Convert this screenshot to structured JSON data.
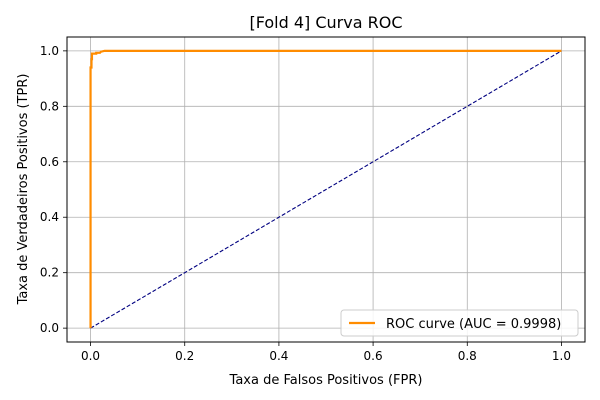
{
  "chart_data": {
    "type": "line",
    "title": "[Fold 4] Curva ROC",
    "xlabel": "Taxa de Falsos Positivos (FPR)",
    "ylabel": "Taxa de Verdadeiros Positivos (TPR)",
    "xlim": [
      -0.05,
      1.05
    ],
    "ylim": [
      -0.05,
      1.05
    ],
    "xticks": [
      "0.0",
      "0.2",
      "0.4",
      "0.6",
      "0.8",
      "1.0"
    ],
    "yticks": [
      "0.0",
      "0.2",
      "0.4",
      "0.6",
      "0.8",
      "1.0"
    ],
    "grid": true,
    "legend_position": "lower right",
    "series": [
      {
        "name": "ROC curve (AUC = 0.9998)",
        "color": "#ff8c00",
        "style": "solid",
        "x": [
          0.0,
          0.0,
          0.002,
          0.002,
          0.003,
          0.003,
          0.012,
          0.012,
          0.02,
          0.022,
          0.03,
          1.0
        ],
        "y": [
          0.0,
          0.94,
          0.94,
          0.97,
          0.97,
          0.99,
          0.99,
          0.993,
          0.993,
          0.997,
          1.0,
          1.0
        ]
      },
      {
        "name": "",
        "color": "#000080",
        "style": "dashed",
        "x": [
          0.0,
          1.0
        ],
        "y": [
          0.0,
          1.0
        ]
      }
    ]
  }
}
